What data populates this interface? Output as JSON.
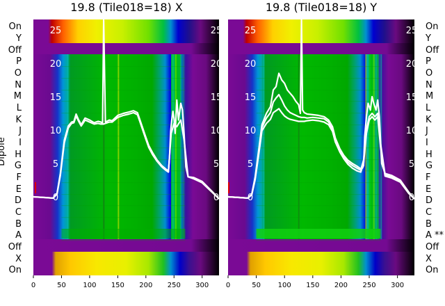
{
  "chart_data": [
    {
      "type": "heatmap",
      "title": "19.8 (Tile018=18) X",
      "ylabel": "Dipole",
      "row_labels": [
        "On",
        "Y",
        "Off",
        "P",
        "O",
        "N",
        "M",
        "L",
        "K",
        "J",
        "I",
        "H",
        "G",
        "F",
        "E",
        "D",
        "C",
        "B",
        "A",
        "Off",
        "X",
        "On"
      ],
      "x_ticks": [
        0,
        50,
        100,
        150,
        200,
        250,
        300
      ],
      "xlim": [
        0,
        330
      ],
      "overlay_ticks": [
        0,
        5,
        10,
        15,
        20,
        25
      ],
      "overlay_ylim": [
        -3,
        27
      ],
      "colormap": "nipy_spectral",
      "overlay": {
        "color": "#ffffff",
        "series": [
          {
            "x": [
              0,
              20,
              35,
              42,
              48,
              55,
              62,
              68,
              72,
              76,
              80,
              85,
              92,
              100,
              108,
              115,
              120,
              123,
              125,
              128,
              135,
              140,
              150,
              160,
              170,
              178,
              185,
              190,
              198,
              205,
              212,
              220,
              228,
              235,
              238,
              240,
              242,
              244,
              246,
              248,
              250,
              252,
              255,
              258,
              262,
              265,
              268,
              271,
              275,
              285,
              300,
              320,
              330
            ],
            "y": [
              0,
              -0.1,
              -0.2,
              0.5,
              3.5,
              8.5,
              10.6,
              11.2,
              11.3,
              12.4,
              11.6,
              10.8,
              11.8,
              11.5,
              11.1,
              11.3,
              11.2,
              11.0,
              26.5,
              11.2,
              11.5,
              11.4,
              12.2,
              12.5,
              12.7,
              12.9,
              12.6,
              11.4,
              9.4,
              7.7,
              6.6,
              5.5,
              4.7,
              4.2,
              4.0,
              3.8,
              6.0,
              9.8,
              11.5,
              12.8,
              11.7,
              9.5,
              14.5,
              11.5,
              14.0,
              13.0,
              9.4,
              4.5,
              3.0,
              2.9,
              2.3,
              0.6,
              -0.3
            ]
          },
          {
            "x": [
              0,
              20,
              35,
              42,
              48,
              55,
              62,
              68,
              72,
              76,
              80,
              85,
              92,
              100,
              108,
              115,
              120,
              125,
              128,
              135,
              140,
              150,
              160,
              170,
              178,
              185,
              190,
              198,
              205,
              212,
              220,
              228,
              235,
              240,
              245,
              250,
              255,
              262,
              268,
              275,
              285,
              300,
              320,
              330
            ],
            "y": [
              0,
              -0.1,
              -0.2,
              0.4,
              3.2,
              8.1,
              10.3,
              11.0,
              11.1,
              12.1,
              11.4,
              10.6,
              11.5,
              11.2,
              10.9,
              11.0,
              10.9,
              10.9,
              11.0,
              11.2,
              11.2,
              11.9,
              12.2,
              12.4,
              12.6,
              12.3,
              11.1,
              9.1,
              7.4,
              6.3,
              5.3,
              4.5,
              4.0,
              3.7,
              9.5,
              11.0,
              10.5,
              11.5,
              8.5,
              3.0,
              2.7,
              2.1,
              0.5,
              -0.3
            ]
          }
        ]
      }
    },
    {
      "type": "heatmap",
      "title": "19.8 (Tile018=18) Y",
      "row_labels": [
        "On",
        "Y",
        "Off",
        "P",
        "O",
        "N",
        "M",
        "L",
        "K",
        "J",
        "I",
        "H",
        "G",
        "F",
        "E",
        "D",
        "C",
        "B",
        "A **",
        "Off",
        "X",
        "On"
      ],
      "x_ticks": [
        0,
        50,
        100,
        150,
        200,
        250,
        300
      ],
      "xlim": [
        0,
        330
      ],
      "overlay_ticks": [
        0,
        5,
        10,
        15,
        20,
        25
      ],
      "overlay_ylim": [
        -3,
        27
      ],
      "colormap": "nipy_spectral",
      "overlay": {
        "color": "#ffffff",
        "series": [
          {
            "x": [
              0,
              20,
              35,
              42,
              48,
              55,
              60,
              68,
              75,
              80,
              85,
              90,
              95,
              100,
              105,
              110,
              115,
              120,
              125,
              128,
              130,
              132,
              135,
              140,
              150,
              160,
              170,
              178,
              185,
              190,
              198,
              205,
              212,
              220,
              228,
              235,
              238,
              240,
              242,
              245,
              248,
              252,
              255,
              258,
              262,
              265,
              268,
              272,
              278,
              290,
              305,
              320,
              330
            ],
            "y": [
              0,
              -0.1,
              -0.2,
              0.4,
              3.0,
              7.5,
              10.8,
              12.5,
              13.5,
              16.0,
              16.5,
              18.5,
              17.5,
              17.0,
              16.0,
              15.5,
              15.0,
              14.3,
              13.8,
              12.5,
              26.5,
              13.0,
              12.6,
              12.4,
              12.3,
              12.2,
              12.0,
              11.5,
              10.5,
              8.8,
              7.2,
              6.2,
              5.5,
              5.0,
              4.6,
              4.2,
              4.3,
              4.7,
              9.0,
              12.0,
              14.0,
              13.0,
              15.0,
              14.0,
              13.0,
              14.5,
              12.0,
              5.0,
              3.5,
              3.2,
              2.5,
              0.7,
              -0.3
            ]
          },
          {
            "x": [
              0,
              20,
              35,
              42,
              48,
              55,
              60,
              68,
              75,
              80,
              85,
              90,
              95,
              100,
              105,
              110,
              115,
              120,
              125,
              130,
              135,
              140,
              150,
              160,
              170,
              178,
              185,
              190,
              198,
              205,
              212,
              220,
              228,
              235,
              240,
              245,
              250,
              255,
              260,
              265,
              270,
              278,
              290,
              305,
              320,
              330
            ],
            "y": [
              0,
              -0.1,
              -0.2,
              0.4,
              2.8,
              7.1,
              10.4,
              11.8,
              12.6,
              14.2,
              14.8,
              15.3,
              14.5,
              13.6,
              13.0,
              12.6,
              12.4,
              12.2,
              12.0,
              11.9,
              11.9,
              11.8,
              11.9,
              11.8,
              11.7,
              11.2,
              10.1,
              8.5,
              6.9,
              5.9,
              5.2,
              4.7,
              4.3,
              4.0,
              5.5,
              10.0,
              12.0,
              12.5,
              12.0,
              12.5,
              8.0,
              3.3,
              3.0,
              2.4,
              0.6,
              -0.3
            ]
          },
          {
            "x": [
              0,
              20,
              35,
              42,
              48,
              55,
              60,
              68,
              75,
              80,
              85,
              90,
              95,
              100,
              105,
              110,
              115,
              120,
              125,
              130,
              135,
              140,
              150,
              160,
              170,
              178,
              185,
              190,
              198,
              205,
              212,
              220,
              228,
              235,
              240,
              245,
              250,
              255,
              260,
              265,
              270,
              278,
              290,
              305,
              320,
              330
            ],
            "y": [
              0,
              -0.1,
              -0.2,
              0.3,
              2.6,
              6.8,
              9.9,
              11.0,
              11.6,
              12.6,
              12.9,
              13.2,
              12.6,
              12.1,
              11.8,
              11.6,
              11.5,
              11.4,
              11.3,
              11.3,
              11.3,
              11.4,
              11.5,
              11.4,
              11.2,
              10.8,
              9.8,
              8.2,
              6.7,
              5.7,
              4.9,
              4.3,
              3.9,
              3.7,
              5.0,
              9.5,
              11.5,
              12.0,
              11.5,
              12.0,
              7.5,
              3.1,
              2.8,
              2.2,
              0.5,
              -0.3
            ]
          }
        ]
      }
    }
  ]
}
